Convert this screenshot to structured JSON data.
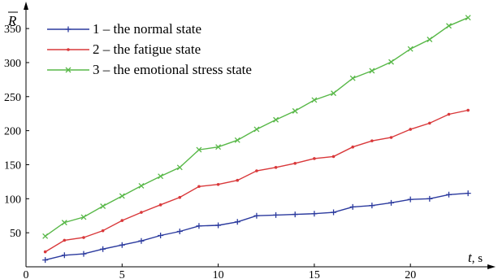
{
  "chart_data": {
    "type": "line",
    "title": "",
    "xlabel": "t",
    "xunit": ", s",
    "ylabel": "R",
    "xlim": [
      0,
      23.5
    ],
    "ylim": [
      0,
      380
    ],
    "xticks": [
      0,
      5,
      10,
      15,
      20
    ],
    "yticks": [
      50,
      100,
      150,
      200,
      250,
      300,
      350
    ],
    "grid": false,
    "legend_position": "top-left",
    "x": [
      1,
      2,
      3,
      4,
      5,
      6,
      7,
      8,
      9,
      10,
      11,
      12,
      13,
      14,
      15,
      16,
      17,
      18,
      19,
      20,
      21,
      22,
      23
    ],
    "series": [
      {
        "name": "1 – the normal state",
        "color": "#2b3a9e",
        "marker": "plus",
        "values": [
          10,
          17,
          19,
          26,
          32,
          38,
          46,
          52,
          60,
          61,
          66,
          75,
          76,
          77,
          78,
          80,
          88,
          90,
          94,
          99,
          100,
          106,
          108
        ]
      },
      {
        "name": "2 – the fatigue state",
        "color": "#d9383a",
        "marker": "dot",
        "values": [
          22,
          39,
          43,
          53,
          68,
          80,
          91,
          102,
          118,
          121,
          127,
          141,
          146,
          152,
          159,
          162,
          176,
          185,
          190,
          202,
          211,
          224,
          230
        ]
      },
      {
        "name": "3 – the emotional stress state",
        "color": "#58b848",
        "marker": "cross",
        "values": [
          45,
          65,
          73,
          89,
          104,
          119,
          133,
          146,
          172,
          176,
          186,
          202,
          216,
          229,
          245,
          255,
          277,
          288,
          301,
          320,
          334,
          354,
          366
        ]
      }
    ]
  }
}
